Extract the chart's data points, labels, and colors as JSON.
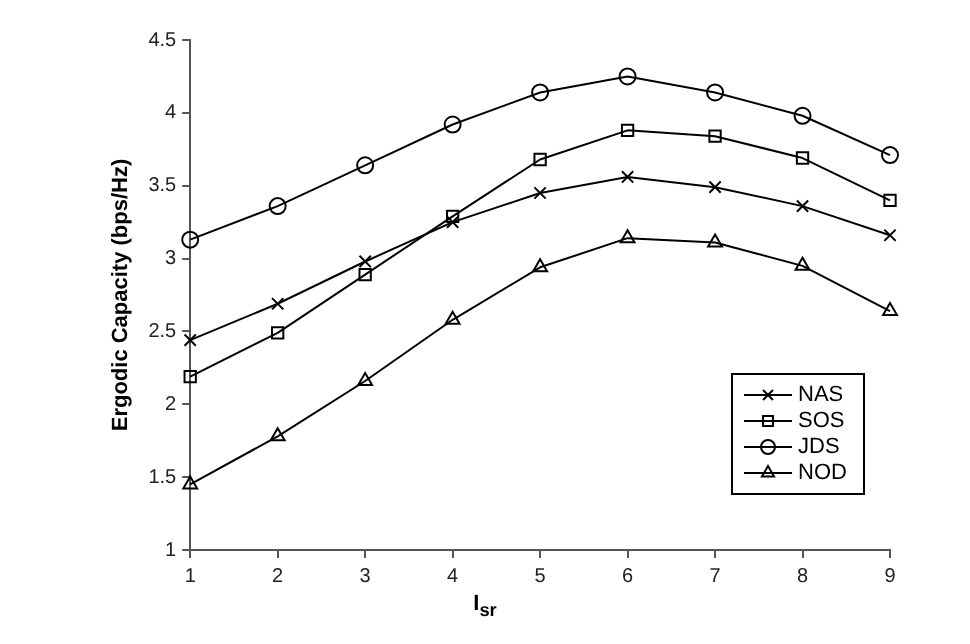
{
  "chart_data": {
    "type": "line",
    "xlabel": "I$_{sr}$",
    "ylabel": "Ergodic Capacity (bps/Hz)",
    "x": [
      1,
      2,
      3,
      4,
      5,
      6,
      7,
      8,
      9
    ],
    "xlim": [
      1,
      9
    ],
    "xticks": [
      1,
      2,
      3,
      4,
      5,
      6,
      7,
      8,
      9
    ],
    "ylim": [
      1,
      4.5
    ],
    "yticks": [
      1,
      1.5,
      2,
      2.5,
      3,
      3.5,
      4,
      4.5
    ],
    "grid": false,
    "legend": "bottom right",
    "line_style": "solid",
    "series": [
      {
        "name": "NAS",
        "color": "#000000",
        "marker": "cross",
        "values": [
          2.44,
          2.69,
          2.98,
          3.25,
          3.45,
          3.56,
          3.49,
          3.36,
          3.16
        ]
      },
      {
        "name": "SOS",
        "color": "#000000",
        "marker": "square",
        "values": [
          2.19,
          2.49,
          2.89,
          3.29,
          3.68,
          3.88,
          3.84,
          3.69,
          3.4
        ]
      },
      {
        "name": "JDS",
        "color": "#000000",
        "marker": "circle",
        "values": [
          3.13,
          3.36,
          3.64,
          3.92,
          4.14,
          4.25,
          4.14,
          3.98,
          3.71
        ]
      },
      {
        "name": "NOD",
        "color": "#000000",
        "marker": "triangle",
        "values": [
          1.45,
          1.78,
          2.16,
          2.58,
          2.94,
          3.14,
          3.11,
          2.95,
          2.64
        ]
      }
    ]
  }
}
